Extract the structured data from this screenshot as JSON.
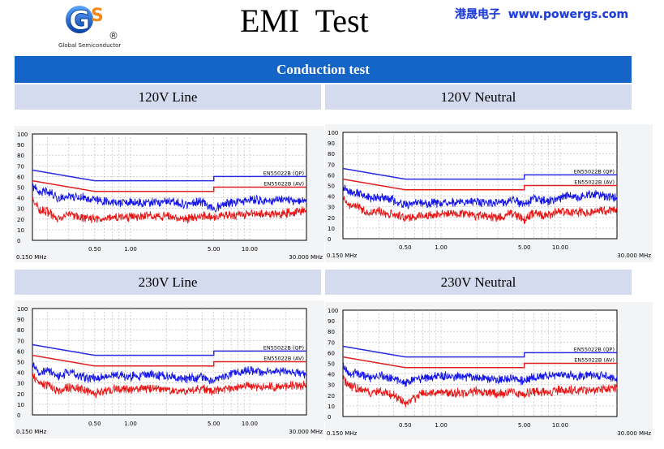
{
  "header": {
    "title": "EMI  Test",
    "brand": "港晟电子  www.powergs.com",
    "logo_text": "Global Semiconductor",
    "logo_mark": "GS"
  },
  "banner": {
    "label": "Conduction test"
  },
  "panels": [
    {
      "label": "120V Line"
    },
    {
      "label": "120V Neutral"
    },
    {
      "label": "230V Line"
    },
    {
      "label": "230V Neutral"
    }
  ],
  "chart_data": [
    {
      "type": "line",
      "title": "120V Line",
      "x_scale": "log",
      "xlim": [
        0.15,
        30
      ],
      "ylim": [
        0,
        100
      ],
      "y_ticks": [
        "0",
        "10",
        "20",
        "30",
        "40",
        "50",
        "60",
        "70",
        "80",
        "90",
        "100"
      ],
      "x_ticks": [
        {
          "v": 0.5,
          "label": "0.50"
        },
        {
          "v": 1,
          "label": "1.00"
        },
        {
          "v": 5,
          "label": "5.00"
        },
        {
          "v": 10,
          "label": "10.00"
        }
      ],
      "x_start_label": "0.150 MHz",
      "x_end_label": "30.000 MHz",
      "series": [
        {
          "name": "EN55022B (QP)",
          "kind": "limit",
          "color": "#2a2ae0",
          "x": [
            0.15,
            0.5,
            0.5,
            5,
            5,
            30
          ],
          "y": [
            66,
            56,
            56,
            56,
            60,
            60
          ]
        },
        {
          "name": "EN55022B (AV)",
          "kind": "limit",
          "color": "#e02020",
          "x": [
            0.15,
            0.5,
            0.5,
            5,
            5,
            30
          ],
          "y": [
            56,
            46,
            46,
            46,
            50,
            50
          ]
        },
        {
          "name": "Blue measurement",
          "kind": "noise",
          "color": "#1515e8",
          "x": [
            0.15,
            0.17,
            0.2,
            0.25,
            0.3,
            0.4,
            0.5,
            0.7,
            1,
            1.5,
            2,
            3,
            4,
            5,
            6,
            8,
            10,
            15,
            20,
            30
          ],
          "y": [
            52,
            44,
            47,
            39,
            42,
            40,
            38,
            36,
            35,
            35,
            36,
            34,
            36,
            30,
            34,
            36,
            38,
            37,
            39,
            36
          ]
        },
        {
          "name": "Red measurement",
          "kind": "noise",
          "color": "#e81515",
          "x": [
            0.15,
            0.17,
            0.2,
            0.25,
            0.3,
            0.4,
            0.5,
            0.7,
            1,
            1.5,
            2,
            3,
            4,
            5,
            6,
            8,
            10,
            15,
            20,
            30
          ],
          "y": [
            40,
            30,
            27,
            20,
            25,
            22,
            19,
            21,
            22,
            23,
            22,
            20,
            23,
            22,
            23,
            24,
            25,
            24,
            25,
            28
          ]
        }
      ]
    },
    {
      "type": "line",
      "title": "120V Neutral",
      "x_scale": "log",
      "xlim": [
        0.15,
        30
      ],
      "ylim": [
        0,
        100
      ],
      "y_ticks": [
        "0",
        "10",
        "20",
        "30",
        "40",
        "50",
        "60",
        "70",
        "80",
        "90",
        "100"
      ],
      "x_ticks": [
        {
          "v": 0.5,
          "label": "0.50"
        },
        {
          "v": 1,
          "label": "1.00"
        },
        {
          "v": 5,
          "label": "5.00"
        },
        {
          "v": 10,
          "label": "10.00"
        }
      ],
      "x_start_label": "0.150 MHz",
      "x_end_label": "30.000 MHz",
      "series": [
        {
          "name": "EN55022B (QP)",
          "kind": "limit",
          "color": "#2a2ae0",
          "x": [
            0.15,
            0.5,
            0.5,
            5,
            5,
            30
          ],
          "y": [
            66,
            56,
            56,
            56,
            60,
            60
          ]
        },
        {
          "name": "EN55022B (AV)",
          "kind": "limit",
          "color": "#e02020",
          "x": [
            0.15,
            0.5,
            0.5,
            5,
            5,
            30
          ],
          "y": [
            56,
            46,
            46,
            46,
            50,
            50
          ]
        },
        {
          "name": "Blue measurement",
          "kind": "noise",
          "color": "#1515e8",
          "x": [
            0.15,
            0.17,
            0.2,
            0.25,
            0.3,
            0.4,
            0.5,
            0.7,
            1,
            1.5,
            2,
            3,
            4,
            5,
            6,
            8,
            10,
            15,
            20,
            30
          ],
          "y": [
            50,
            44,
            43,
            38,
            40,
            36,
            32,
            34,
            33,
            35,
            35,
            33,
            37,
            32,
            38,
            35,
            39,
            40,
            42,
            38
          ]
        },
        {
          "name": "Red measurement",
          "kind": "noise",
          "color": "#e81515",
          "x": [
            0.15,
            0.17,
            0.2,
            0.25,
            0.3,
            0.4,
            0.5,
            0.7,
            1,
            1.5,
            2,
            3,
            4,
            5,
            6,
            8,
            10,
            15,
            20,
            30
          ],
          "y": [
            38,
            32,
            30,
            24,
            26,
            22,
            20,
            22,
            23,
            24,
            22,
            20,
            24,
            18,
            24,
            22,
            26,
            25,
            26,
            27
          ]
        }
      ]
    },
    {
      "type": "line",
      "title": "230V Line",
      "x_scale": "log",
      "xlim": [
        0.15,
        30
      ],
      "ylim": [
        0,
        100
      ],
      "y_ticks": [
        "0",
        "10",
        "20",
        "30",
        "40",
        "50",
        "60",
        "70",
        "80",
        "90",
        "100"
      ],
      "x_ticks": [
        {
          "v": 0.5,
          "label": "0.50"
        },
        {
          "v": 1,
          "label": "1.00"
        },
        {
          "v": 5,
          "label": "5.00"
        },
        {
          "v": 10,
          "label": "10.00"
        }
      ],
      "x_start_label": "0.150 MHz",
      "x_end_label": "30.000 MHz",
      "series": [
        {
          "name": "EN55022B (QP)",
          "kind": "limit",
          "color": "#2a2ae0",
          "x": [
            0.15,
            0.5,
            0.5,
            5,
            5,
            30
          ],
          "y": [
            66,
            56,
            56,
            56,
            60,
            60
          ]
        },
        {
          "name": "EN55022B (AV)",
          "kind": "limit",
          "color": "#e02020",
          "x": [
            0.15,
            0.5,
            0.5,
            5,
            5,
            30
          ],
          "y": [
            56,
            46,
            46,
            46,
            50,
            50
          ]
        },
        {
          "name": "Blue measurement",
          "kind": "noise",
          "color": "#1515e8",
          "x": [
            0.15,
            0.17,
            0.2,
            0.25,
            0.3,
            0.4,
            0.5,
            0.7,
            1,
            1.5,
            2,
            3,
            4,
            5,
            6,
            8,
            10,
            15,
            20,
            30
          ],
          "y": [
            48,
            40,
            42,
            36,
            40,
            36,
            34,
            38,
            36,
            38,
            36,
            34,
            36,
            32,
            36,
            40,
            42,
            40,
            42,
            38
          ]
        },
        {
          "name": "Red measurement",
          "kind": "noise",
          "color": "#e81515",
          "x": [
            0.15,
            0.17,
            0.2,
            0.25,
            0.3,
            0.4,
            0.5,
            0.7,
            1,
            1.5,
            2,
            3,
            4,
            5,
            6,
            8,
            10,
            15,
            20,
            30
          ],
          "y": [
            36,
            30,
            28,
            22,
            26,
            24,
            20,
            24,
            24,
            25,
            24,
            22,
            25,
            22,
            24,
            26,
            27,
            26,
            27,
            28
          ]
        }
      ]
    },
    {
      "type": "line",
      "title": "230V Neutral",
      "x_scale": "log",
      "xlim": [
        0.15,
        30
      ],
      "ylim": [
        0,
        100
      ],
      "y_ticks": [
        "0",
        "10",
        "20",
        "30",
        "40",
        "50",
        "60",
        "70",
        "80",
        "90",
        "100"
      ],
      "x_ticks": [
        {
          "v": 0.5,
          "label": "0.50"
        },
        {
          "v": 1,
          "label": "1.00"
        },
        {
          "v": 5,
          "label": "5.00"
        },
        {
          "v": 10,
          "label": "10.00"
        }
      ],
      "x_start_label": "0.150 MHz",
      "x_end_label": "30.000 MHz",
      "series": [
        {
          "name": "EN55022B (QP)",
          "kind": "limit",
          "color": "#2a2ae0",
          "x": [
            0.15,
            0.5,
            0.5,
            5,
            5,
            30
          ],
          "y": [
            66,
            56,
            56,
            56,
            60,
            60
          ]
        },
        {
          "name": "EN55022B (AV)",
          "kind": "limit",
          "color": "#e02020",
          "x": [
            0.15,
            0.5,
            0.5,
            5,
            5,
            30
          ],
          "y": [
            56,
            46,
            46,
            46,
            50,
            50
          ]
        },
        {
          "name": "Blue measurement",
          "kind": "noise",
          "color": "#1515e8",
          "x": [
            0.15,
            0.17,
            0.2,
            0.25,
            0.3,
            0.4,
            0.5,
            0.7,
            1,
            1.5,
            2,
            3,
            4,
            5,
            6,
            8,
            10,
            15,
            20,
            30
          ],
          "y": [
            47,
            40,
            41,
            36,
            39,
            35,
            32,
            36,
            38,
            38,
            37,
            34,
            37,
            33,
            37,
            38,
            40,
            38,
            39,
            36
          ]
        },
        {
          "name": "Red measurement",
          "kind": "noise",
          "color": "#e81515",
          "x": [
            0.15,
            0.17,
            0.2,
            0.25,
            0.3,
            0.4,
            0.5,
            0.7,
            1,
            1.5,
            2,
            3,
            4,
            5,
            6,
            8,
            10,
            15,
            20,
            30
          ],
          "y": [
            35,
            28,
            27,
            22,
            24,
            20,
            12,
            22,
            23,
            22,
            24,
            21,
            23,
            20,
            24,
            23,
            25,
            24,
            25,
            27
          ]
        }
      ]
    }
  ]
}
